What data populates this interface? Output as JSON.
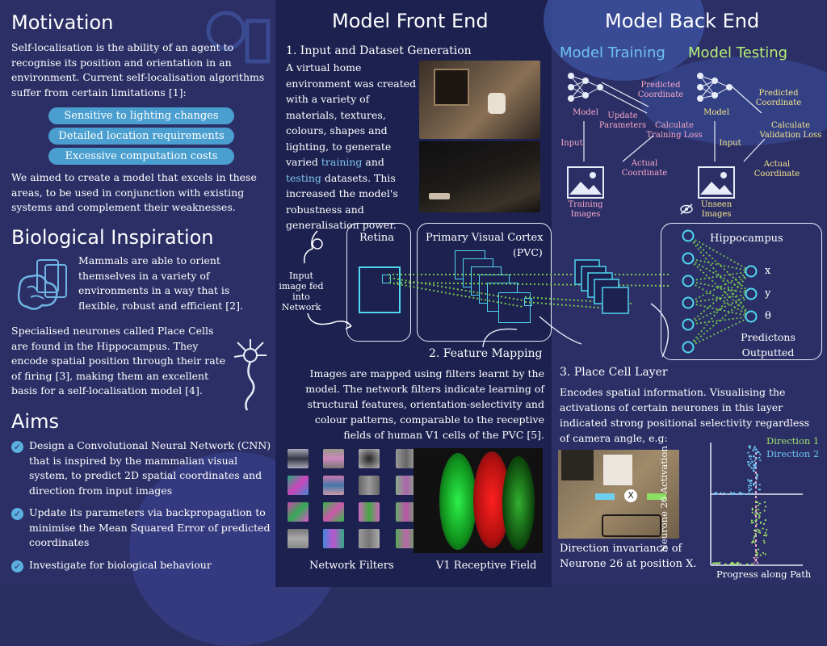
{
  "colors": {
    "accent_blue": "#4a9fd0",
    "pink": "#f5a8c8",
    "yellow": "#f3e58c",
    "cyan": "#4fd6f0",
    "green": "#74c94b"
  },
  "left": {
    "motivation": {
      "title": "Motivation",
      "text": "Self-localisation is the ability of an agent to recognise its position and orientation in an environment. Current self-localisation algorithms suffer from certain limitations [1]:",
      "limitations": [
        "Sensitive to lighting changes",
        "Detailed location requirements",
        "Excessive computation costs"
      ],
      "aim_text": "We aimed to create a model that excels in these areas, to be used in conjunction with existing systems and complement their weaknesses."
    },
    "bio": {
      "title": "Biological Inspiration",
      "text1": "Mammals are able to orient themselves in a variety of environments in a way that is flexible, robust and efficient [2].",
      "text2": "Specialised neurones called Place Cells are found in the Hippocampus. They encode spatial position through their rate of firing [3], making them an excellent basis for a self-localisation model [4]."
    },
    "aims": {
      "title": "Aims",
      "items": [
        "Design a Convolutional Neural Network (CNN) that is inspired by the mammalian visual system, to predict 2D spatial coordinates and direction from input images",
        "Update its parameters via backpropagation to minimise the Mean Squared Error of predicted coordinates",
        "Investigate for biological behaviour"
      ]
    }
  },
  "front": {
    "title": "Model Front End",
    "step1_title": "1. Input and Dataset Generation",
    "step1_text_a": "A virtual home environment was created with a variety of materials, textures, colours, shapes and lighting, to generate varied ",
    "step1_training": "training",
    "step1_and": " and ",
    "step1_testing": "testing",
    "step1_text_b": " datasets. This increased the model's robustness and generalisation power.",
    "input_label": "Input image fed into Network",
    "retina": "Retina",
    "pvc_title": "Primary Visual Cortex",
    "pvc_abbr": "(PVC)",
    "step2_title": "2. Feature Mapping",
    "step2_text": "Images are mapped using filters learnt by the model. The network filters indicate learning of structural features, orientation-selectivity and colour patterns, comparable to the receptive fields of human V1 cells of the PVC [5].",
    "filters_caption": "Network Filters",
    "v1_caption": "V1 Receptive Field"
  },
  "back": {
    "title": "Model Back End",
    "training_title": "Model Training",
    "testing_title": "Model Testing",
    "model": "Model",
    "input": "Input",
    "predicted": "Predicted Coordinate",
    "update": "Update Parameters",
    "calc_train": "Calculate Training Loss",
    "calc_val": "Calculate Validation Loss",
    "actual": "Actual Coordinate",
    "training_images": "Training Images",
    "unseen_images": "Unseen Images",
    "hippocampus": "Hippocampus",
    "outputs": [
      "x",
      "y",
      "θ"
    ],
    "predictions": "Predictons Outputted",
    "step3_title": "3. Place Cell Layer",
    "step3_text": "Encodes spatial information. Visualising the activations of certain neurones in this layer indicated strong positional selectivity regardless of camera angle, e.g:",
    "photo_caption": "Direction invariance of Neurone 26 at position X.",
    "marker_x": "X",
    "chart_ylabel": "Neurone 26 Activation",
    "chart_xlabel": "Progress along Path",
    "legend1": "Direction 1",
    "legend2": "Direction 2"
  }
}
